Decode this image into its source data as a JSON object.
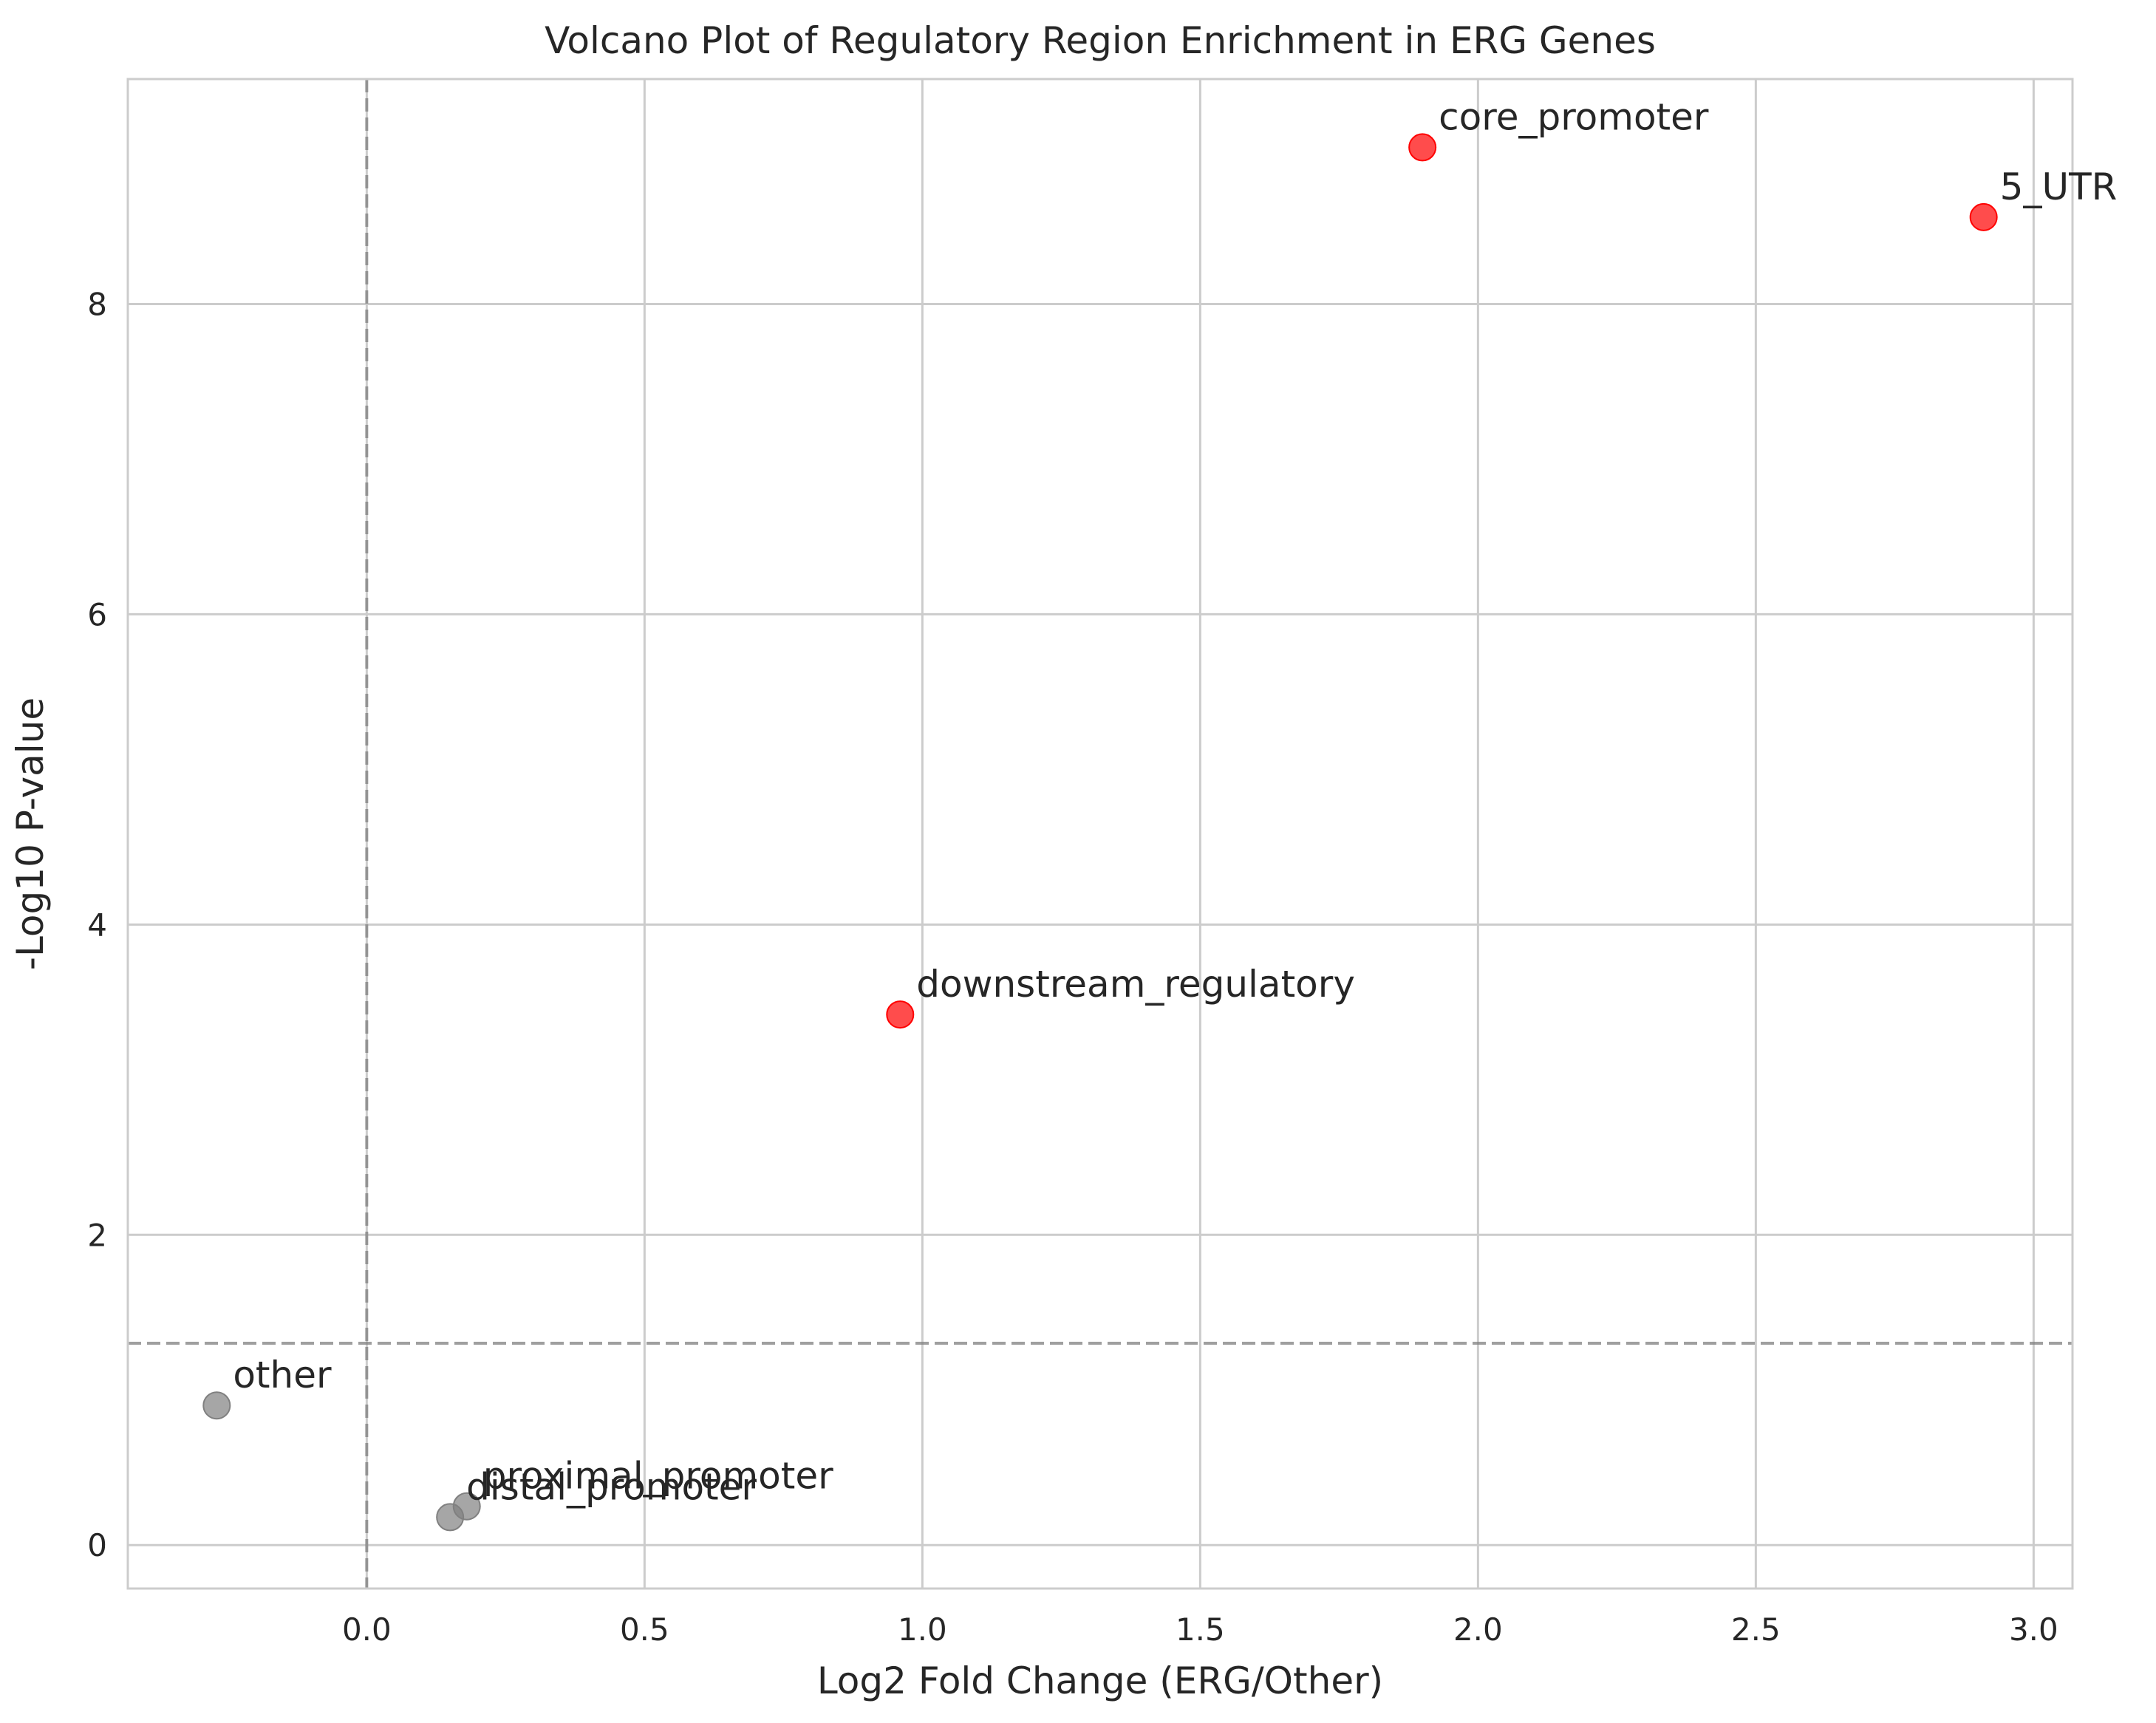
{
  "chart_data": {
    "type": "scatter",
    "title": "Volcano Plot of Regulatory Region Enrichment in ERG Genes",
    "xlabel": "Log2 Fold Change (ERG/Other)",
    "ylabel": "-Log10 P-value",
    "xlim": [
      -0.43,
      3.07
    ],
    "ylim": [
      -0.28,
      9.45
    ],
    "xticks": [
      0.0,
      0.5,
      1.0,
      1.5,
      2.0,
      2.5,
      3.0
    ],
    "xtick_labels": [
      "0.0",
      "0.5",
      "1.0",
      "1.5",
      "2.0",
      "2.5",
      "3.0"
    ],
    "yticks": [
      0,
      2,
      4,
      6,
      8
    ],
    "ytick_labels": [
      "0",
      "2",
      "4",
      "6",
      "8"
    ],
    "grid": true,
    "threshold_lines": {
      "x": 0.0,
      "y": 1.301
    },
    "colors": {
      "significant": "#ff0000",
      "not_significant": "#808080",
      "threshold_line": "#808080",
      "grid": "#cccccc",
      "spine": "#cccccc",
      "text": "#262626"
    },
    "points": [
      {
        "label": "core_promoter",
        "x": 1.9,
        "y": 9.01,
        "significant": true
      },
      {
        "label": "5_UTR",
        "x": 2.91,
        "y": 8.56,
        "significant": true
      },
      {
        "label": "downstream_regulatory",
        "x": 0.96,
        "y": 3.42,
        "significant": true
      },
      {
        "label": "other",
        "x": -0.27,
        "y": 0.9,
        "significant": false
      },
      {
        "label": "proximal_promoter",
        "x": 0.18,
        "y": 0.25,
        "significant": false
      },
      {
        "label": "distal_promoter",
        "x": 0.15,
        "y": 0.18,
        "significant": false
      }
    ]
  }
}
